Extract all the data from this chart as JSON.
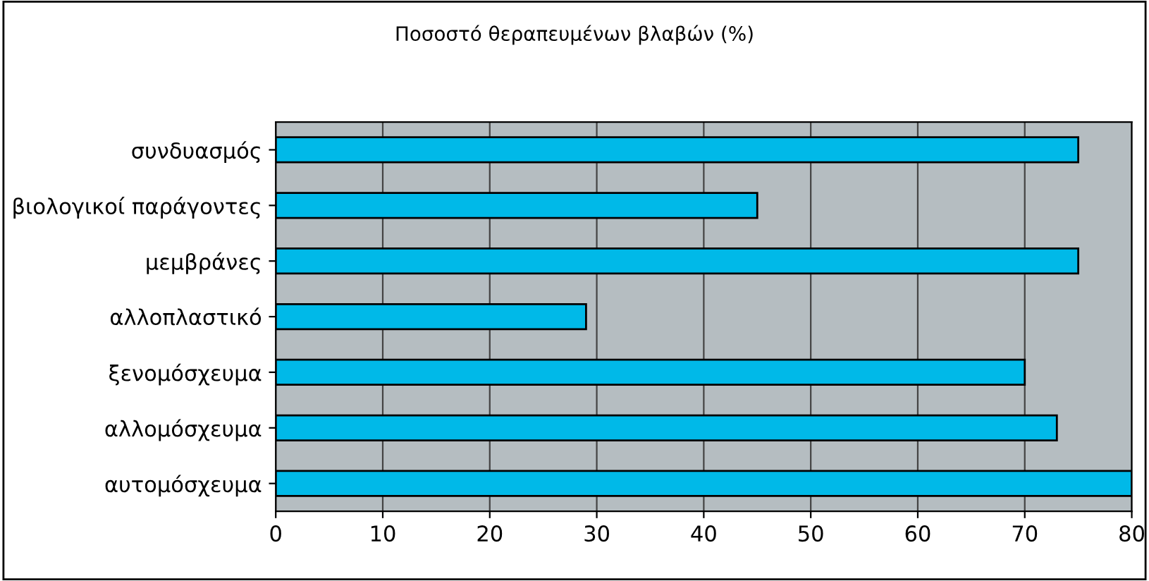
{
  "chart_data": {
    "type": "bar",
    "orientation": "horizontal",
    "title": "Ποσοστό θεραπευμένων βλαβών (%)",
    "categories": [
      "συνδυασμός",
      "βιολογικοί παράγοντες",
      "μεμβράνες",
      "αλλοπλαστικό",
      "ξενομόσχευμα",
      "αλλομόσχευμα",
      "αυτομόσχευμα"
    ],
    "values": [
      75,
      45,
      75,
      29,
      70,
      73,
      80
    ],
    "color": "#00b9e8",
    "xlim": [
      0,
      80
    ],
    "xticks": [
      0,
      10,
      20,
      30,
      40,
      50,
      60,
      70,
      80
    ],
    "grid": "x",
    "legend": false
  }
}
